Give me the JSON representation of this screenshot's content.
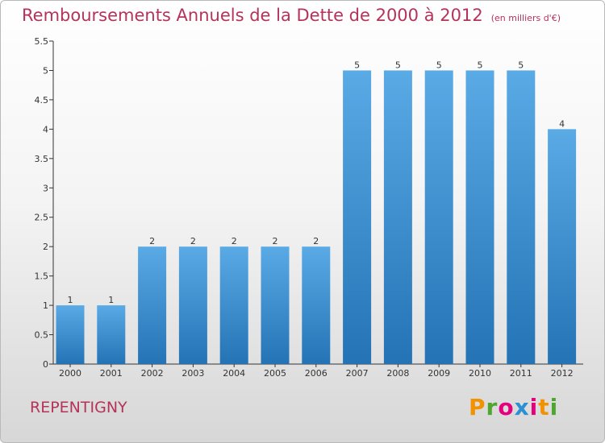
{
  "chart_data": {
    "type": "bar",
    "title": "Remboursements Annuels de la Dette de 2000 à 2012",
    "unit_note": "(en milliers d'€)",
    "categories": [
      "2000",
      "2001",
      "2002",
      "2003",
      "2004",
      "2005",
      "2006",
      "2007",
      "2008",
      "2009",
      "2010",
      "2011",
      "2012"
    ],
    "values": [
      1,
      1,
      2,
      2,
      2,
      2,
      2,
      5,
      5,
      5,
      5,
      5,
      4
    ],
    "data_labels": [
      "1",
      "1",
      "2",
      "2",
      "2",
      "2",
      "2",
      "5",
      "5",
      "5",
      "5",
      "5",
      "4"
    ],
    "ylim": [
      0,
      5.5
    ],
    "yticks": [
      "0",
      "0.5",
      "1",
      "1.5",
      "2",
      "2.5",
      "3",
      "3.5",
      "4",
      "4.5",
      "5",
      "5.5"
    ],
    "grid": false,
    "bar_color_top": "#5aaae6",
    "bar_color_bottom": "#2473b5"
  },
  "footer": {
    "commune": "REPENTIGNY",
    "brand_letters": [
      "P",
      "r",
      "o",
      "x",
      "i",
      "t",
      "i"
    ],
    "brand_colors": [
      "#f39200",
      "#4da62d",
      "#e5007e",
      "#2c8fd4",
      "#e5007e",
      "#f39200",
      "#4da62d"
    ]
  }
}
